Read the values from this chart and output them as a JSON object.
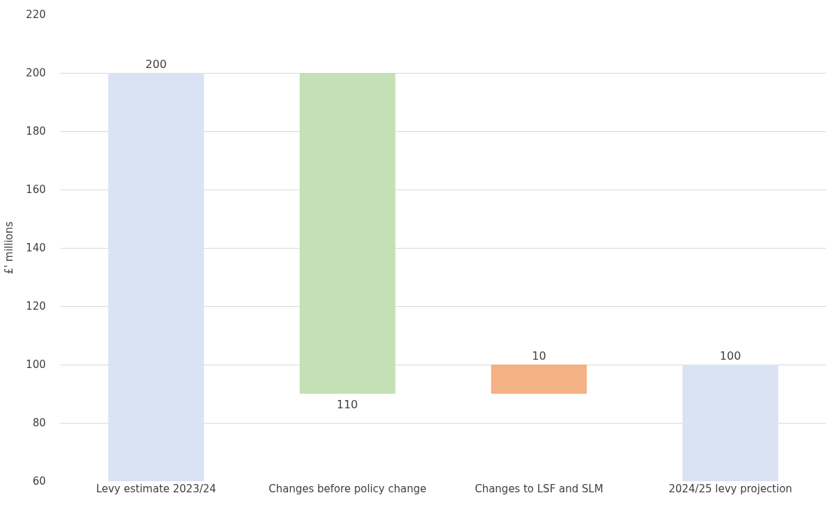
{
  "chart_data": {
    "type": "bar",
    "ylabel": "£' millions",
    "categories": [
      "Levy estimate 2023/24",
      "Changes before policy change",
      "Changes to LSF and SLM",
      "2024/25 levy projection"
    ],
    "values": [
      200,
      -110,
      10,
      100
    ],
    "base": [
      0,
      200,
      90,
      0
    ],
    "colors": [
      "#dae3f3",
      "#c5e0b4",
      "#f4b183",
      "#dae3f3"
    ],
    "value_labels": [
      "200",
      "110",
      "10",
      "100"
    ],
    "ylim": [
      60,
      220
    ],
    "yticks": [
      60,
      80,
      100,
      120,
      140,
      160,
      180,
      200,
      220
    ],
    "grid": "y"
  }
}
